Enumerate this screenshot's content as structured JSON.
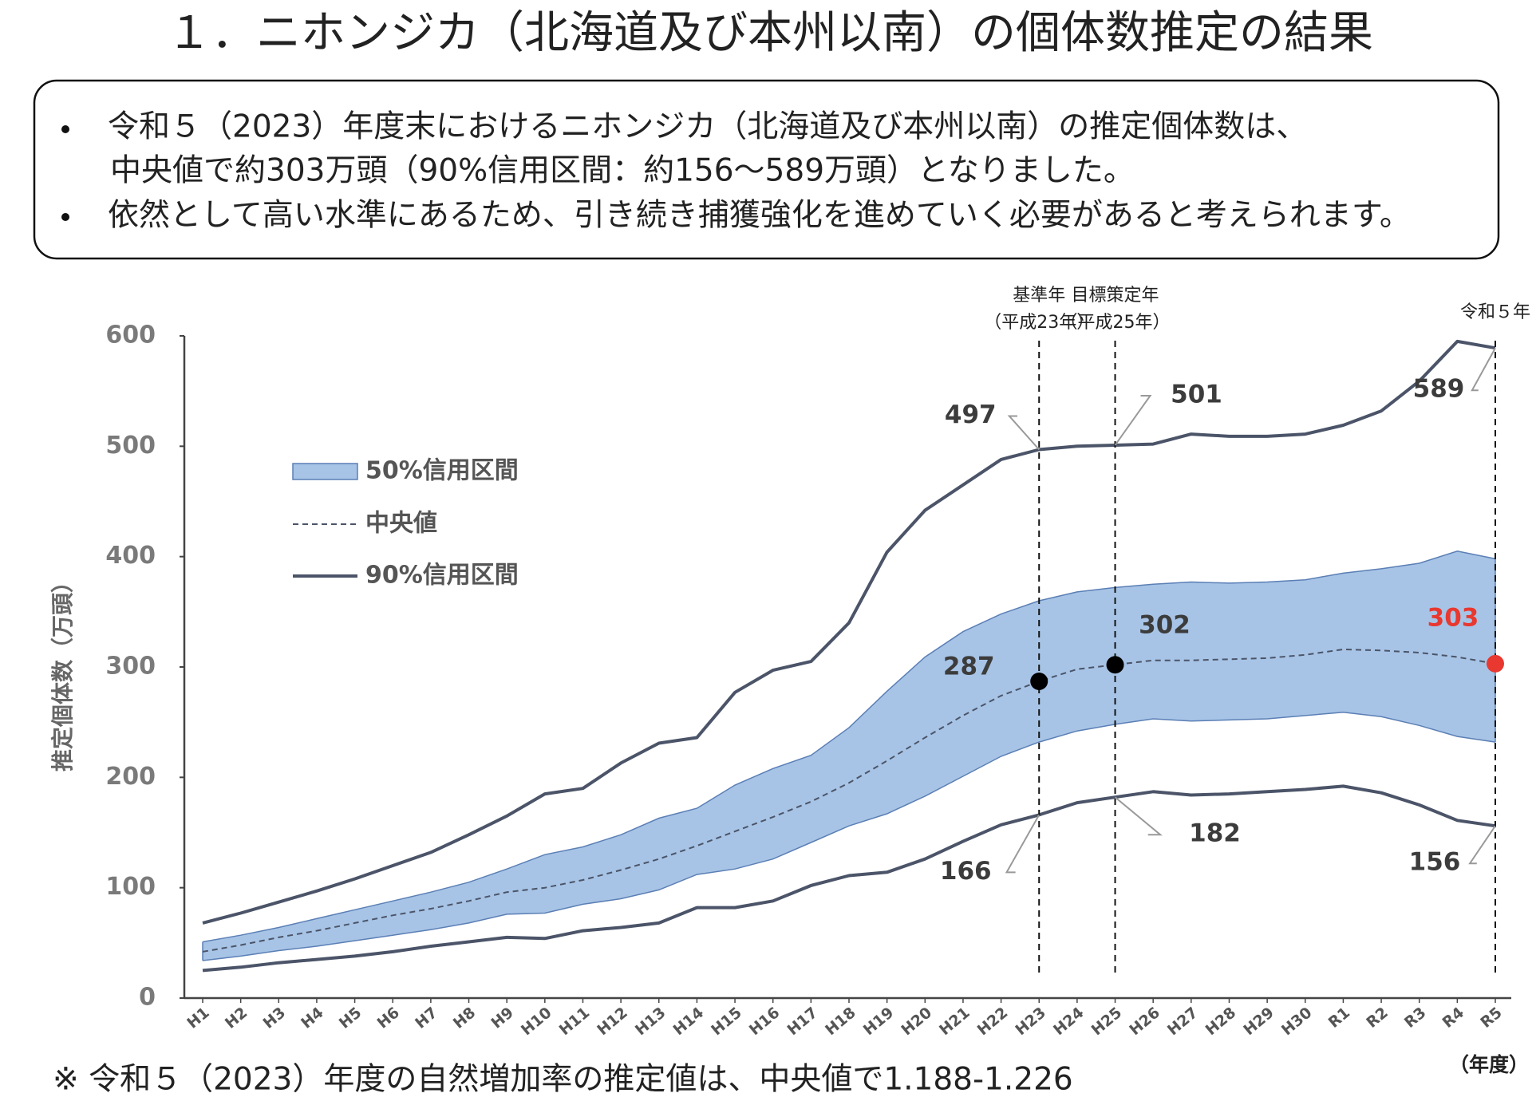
{
  "header": {
    "title": "１．ニホンジカ（北海道及び本州以南）の個体数推定の結果"
  },
  "summary": {
    "bullets": [
      [
        "令和５（2023）年度末におけるニホンジカ（北海道及び本州以南）の推定個体数は、",
        "中央値で約303万頭（90%信用区間：約156～589万頭）となりました。"
      ],
      [
        "依然として高い水準にあるため、引き続き捕獲強化を進めていく必要があると考えられます。"
      ]
    ]
  },
  "chart_data": {
    "type": "band-line",
    "y_label": "推定個体数（万頭）",
    "x_label": "（年度）",
    "categories": [
      "H1",
      "H2",
      "H3",
      "H4",
      "H5",
      "H6",
      "H7",
      "H8",
      "H9",
      "H10",
      "H11",
      "H12",
      "H13",
      "H14",
      "H15",
      "H16",
      "H17",
      "H18",
      "H19",
      "H20",
      "H21",
      "H22",
      "H23",
      "H24",
      "H25",
      "H26",
      "H27",
      "H28",
      "H29",
      "H30",
      "R1",
      "R2",
      "R3",
      "R4",
      "R5"
    ],
    "ylim": [
      0,
      600
    ],
    "yticks": [
      0,
      100,
      200,
      300,
      400,
      500,
      600
    ],
    "grid": false,
    "series": [
      {
        "name": "50%信用区間",
        "style": "band",
        "color": "#a7c4e6",
        "edge_color": "#5b7fb5",
        "upper": [
          51,
          57,
          64,
          72,
          80,
          88,
          96,
          105,
          117,
          130,
          137,
          148,
          163,
          172,
          193,
          208,
          220,
          245,
          278,
          309,
          332,
          348,
          360,
          368,
          372,
          375,
          377,
          376,
          377,
          379,
          385,
          389,
          394,
          405,
          398
        ],
        "lower": [
          34,
          38,
          43,
          47,
          52,
          57,
          62,
          68,
          76,
          77,
          85,
          90,
          98,
          112,
          117,
          126,
          141,
          156,
          167,
          183,
          201,
          219,
          232,
          242,
          248,
          253,
          251,
          252,
          253,
          256,
          259,
          255,
          247,
          237,
          232
        ]
      },
      {
        "name": "中央値",
        "style": "dashed",
        "color": "#4b5468",
        "values": [
          42,
          48,
          55,
          61,
          68,
          75,
          81,
          88,
          96,
          100,
          107,
          116,
          126,
          138,
          151,
          164,
          178,
          195,
          215,
          236,
          256,
          274,
          287,
          298,
          302,
          306,
          306,
          307,
          308,
          311,
          316,
          315,
          313,
          309,
          303
        ]
      },
      {
        "name": "90%信用区間",
        "style": "lines",
        "color": "#4b5468",
        "upper": [
          68,
          77,
          87,
          97,
          108,
          120,
          132,
          148,
          165,
          185,
          190,
          213,
          231,
          236,
          277,
          297,
          305,
          340,
          404,
          442,
          465,
          488,
          497,
          500,
          501,
          502,
          511,
          509,
          509,
          511,
          519,
          532,
          559,
          595,
          589
        ],
        "lower": [
          25,
          28,
          32,
          35,
          38,
          42,
          47,
          51,
          55,
          54,
          61,
          64,
          68,
          82,
          82,
          88,
          102,
          111,
          114,
          126,
          142,
          157,
          166,
          177,
          182,
          187,
          184,
          185,
          187,
          189,
          192,
          186,
          175,
          161,
          156
        ]
      }
    ],
    "reference_lines": [
      {
        "category": "H23",
        "label": [
          "基準年",
          "（平成23年）"
        ]
      },
      {
        "category": "H25",
        "label": [
          "目標策定年",
          "（平成25年）"
        ]
      },
      {
        "category": "R5",
        "label": [
          "令和５年"
        ]
      }
    ],
    "annotations": [
      {
        "category": "H23",
        "value": 497
      },
      {
        "category": "H25",
        "value": 501
      },
      {
        "category": "H23",
        "value": 287,
        "marker": "#000000"
      },
      {
        "category": "H25",
        "value": 302,
        "marker": "#000000"
      },
      {
        "category": "R5",
        "value": 303,
        "marker": "#e8382f",
        "color": "#e8382f"
      },
      {
        "category": "R5",
        "value": 589
      },
      {
        "category": "H23",
        "value": 166
      },
      {
        "category": "H25",
        "value": 182
      },
      {
        "category": "R5",
        "value": 156
      }
    ]
  },
  "footnote": "※ 令和５（2023）年度の自然増加率の推定値は、中央値で1.188-1.226"
}
